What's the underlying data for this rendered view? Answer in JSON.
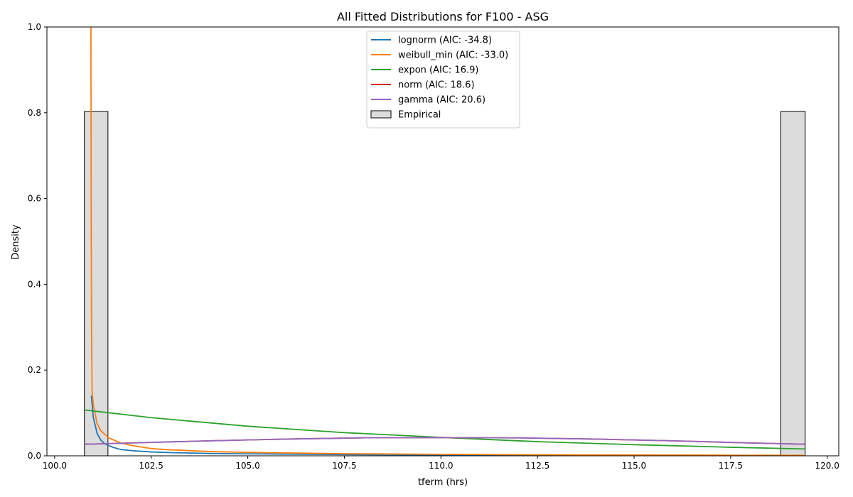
{
  "chart_data": {
    "type": "line",
    "title": "All Fitted Distributions for F100 - ASG",
    "xlabel": "tferm (hrs)",
    "ylabel": "Density",
    "xlim": [
      99.8,
      120.3
    ],
    "ylim": [
      0,
      1.0
    ],
    "xticks": [
      100.0,
      102.5,
      105.0,
      107.5,
      110.0,
      112.5,
      115.0,
      117.5,
      120.0
    ],
    "xtick_labels": [
      "100.0",
      "102.5",
      "105.0",
      "107.5",
      "110.0",
      "112.5",
      "115.0",
      "117.5",
      "120.0"
    ],
    "yticks": [
      0.0,
      0.2,
      0.4,
      0.6,
      0.8,
      1.0
    ],
    "ytick_labels": [
      "0.0",
      "0.2",
      "0.4",
      "0.6",
      "0.8",
      "1.0"
    ],
    "grid": false,
    "legend_position": "top-center",
    "histogram": {
      "name": "Empirical",
      "color": "#dcdcdc",
      "edge_color": "#000000",
      "bins": [
        {
          "x0": 100.77,
          "x1": 101.38,
          "density": 0.803
        },
        {
          "x0": 118.8,
          "x1": 119.43,
          "density": 0.803
        }
      ]
    },
    "series": [
      {
        "name": "lognorm (AIC: -34.8)",
        "color": "#1f77b4",
        "x": [
          100.95,
          101.0,
          101.1,
          101.2,
          101.3,
          101.5,
          101.7,
          102.0,
          102.5,
          103.0,
          104.0,
          105.0,
          107.5,
          110.0,
          112.5,
          115.0,
          117.5,
          119.4
        ],
        "y": [
          0.14,
          0.09,
          0.052,
          0.036,
          0.028,
          0.02,
          0.015,
          0.012,
          0.009,
          0.0075,
          0.0055,
          0.0045,
          0.003,
          0.002,
          0.0015,
          0.0012,
          0.001,
          0.0008
        ]
      },
      {
        "name": "weibull_min (AIC: -33.0)",
        "color": "#ff7f0e",
        "x": [
          100.94,
          100.945,
          100.955,
          100.97,
          101.0,
          101.1,
          101.2,
          101.4,
          101.7,
          102.0,
          102.5,
          103.0,
          104.0,
          105.0,
          107.5,
          110.0,
          112.5,
          115.0,
          117.5,
          119.4
        ],
        "y": [
          1.0,
          0.6,
          0.3,
          0.15,
          0.12,
          0.075,
          0.058,
          0.042,
          0.03,
          0.024,
          0.017,
          0.014,
          0.01,
          0.008,
          0.005,
          0.0035,
          0.0025,
          0.002,
          0.0015,
          0.0012
        ]
      },
      {
        "name": "expon (AIC: 16.9)",
        "color": "#2ca02c",
        "x": [
          100.77,
          102.5,
          105.0,
          107.5,
          110.0,
          112.5,
          115.0,
          117.5,
          119.43
        ],
        "y": [
          0.107,
          0.089,
          0.069,
          0.054,
          0.043,
          0.033,
          0.026,
          0.02,
          0.016
        ]
      },
      {
        "name": "norm (AIC: 18.6)",
        "color": "#d62728",
        "x": [
          100.77,
          102.0,
          104.0,
          106.0,
          108.0,
          110.1,
          112.0,
          114.0,
          116.0,
          118.0,
          119.43
        ],
        "y": [
          0.027,
          0.03,
          0.035,
          0.039,
          0.042,
          0.0425,
          0.0418,
          0.039,
          0.035,
          0.03,
          0.027
        ]
      },
      {
        "name": "gamma (AIC: 20.6)",
        "color": "#9467bd",
        "x": [
          100.77,
          102.0,
          104.0,
          106.0,
          108.0,
          110.1,
          112.0,
          114.0,
          116.0,
          118.0,
          119.43
        ],
        "y": [
          0.027,
          0.03,
          0.035,
          0.039,
          0.042,
          0.0425,
          0.0418,
          0.039,
          0.035,
          0.03,
          0.027
        ]
      }
    ],
    "legend": [
      {
        "label": "lognorm (AIC: -34.8)",
        "kind": "line",
        "color": "#1f77b4"
      },
      {
        "label": "weibull_min (AIC: -33.0)",
        "kind": "line",
        "color": "#ff7f0e"
      },
      {
        "label": "expon (AIC: 16.9)",
        "kind": "line",
        "color": "#2ca02c"
      },
      {
        "label": "norm (AIC: 18.6)",
        "kind": "line",
        "color": "#d62728"
      },
      {
        "label": "gamma (AIC: 20.6)",
        "kind": "line",
        "color": "#9467bd"
      },
      {
        "label": "Empirical",
        "kind": "patch",
        "color": "#dcdcdc"
      }
    ]
  }
}
